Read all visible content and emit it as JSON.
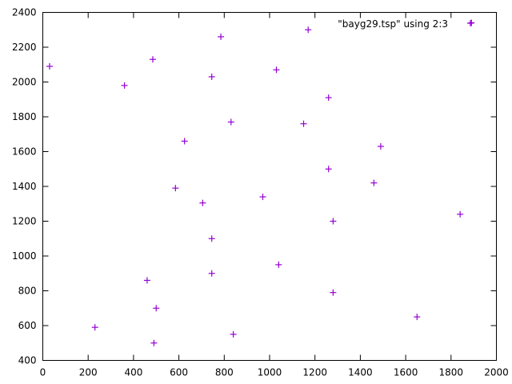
{
  "chart_data": {
    "type": "scatter",
    "xlim": [
      0,
      2000
    ],
    "ylim": [
      400,
      2400
    ],
    "x_ticks": [
      0,
      200,
      400,
      600,
      800,
      1000,
      1200,
      1400,
      1600,
      1800,
      2000
    ],
    "y_ticks": [
      400,
      600,
      800,
      1000,
      1200,
      1400,
      1600,
      1800,
      2000,
      2200,
      2400
    ],
    "x_tick_labels": [
      "0",
      "200",
      "400",
      "600",
      "800",
      "1000",
      "1200",
      "1400",
      "1600",
      "1800",
      "2000"
    ],
    "y_tick_labels": [
      "400",
      "600",
      "800",
      "1000",
      "1200",
      "1400",
      "1600",
      "1800",
      "2000",
      "2200",
      "2400"
    ],
    "grid": false,
    "legend_position": "top-right",
    "marker": "plus",
    "series": [
      {
        "name": "\"bayg29.tsp\" using 2:3",
        "color": "#9400d3",
        "points": [
          {
            "x": 30,
            "y": 2090
          },
          {
            "x": 360,
            "y": 1980
          },
          {
            "x": 485,
            "y": 2130
          },
          {
            "x": 785,
            "y": 2260
          },
          {
            "x": 1170,
            "y": 2300
          },
          {
            "x": 1890,
            "y": 2340
          },
          {
            "x": 745,
            "y": 2030
          },
          {
            "x": 1030,
            "y": 2070
          },
          {
            "x": 1260,
            "y": 1910
          },
          {
            "x": 830,
            "y": 1770
          },
          {
            "x": 1150,
            "y": 1760
          },
          {
            "x": 625,
            "y": 1660
          },
          {
            "x": 1490,
            "y": 1630
          },
          {
            "x": 1260,
            "y": 1500
          },
          {
            "x": 1460,
            "y": 1420
          },
          {
            "x": 585,
            "y": 1390
          },
          {
            "x": 970,
            "y": 1340
          },
          {
            "x": 705,
            "y": 1305
          },
          {
            "x": 1280,
            "y": 1200
          },
          {
            "x": 1840,
            "y": 1240
          },
          {
            "x": 745,
            "y": 1100
          },
          {
            "x": 1040,
            "y": 950
          },
          {
            "x": 460,
            "y": 860
          },
          {
            "x": 745,
            "y": 900
          },
          {
            "x": 1280,
            "y": 790
          },
          {
            "x": 500,
            "y": 700
          },
          {
            "x": 230,
            "y": 590
          },
          {
            "x": 1650,
            "y": 650
          },
          {
            "x": 840,
            "y": 550
          },
          {
            "x": 490,
            "y": 500
          }
        ]
      }
    ]
  }
}
